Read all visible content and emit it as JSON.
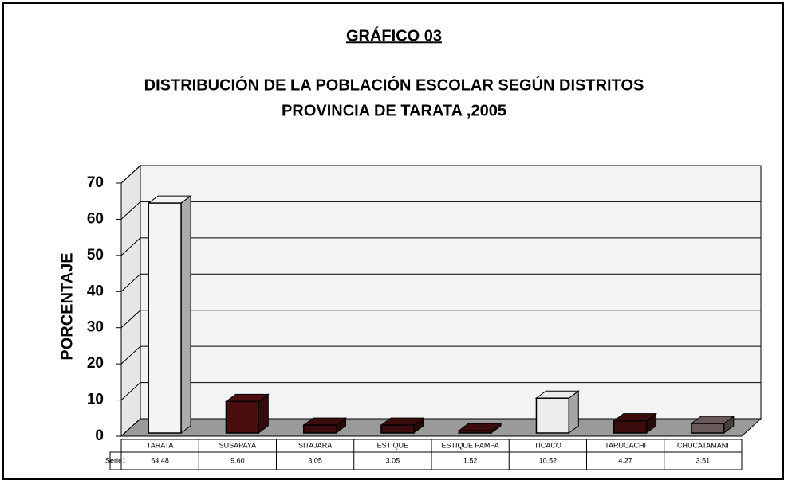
{
  "chart_data": {
    "type": "bar3d",
    "title": "GRÁFICO 03",
    "subtitle": [
      "DISTRIBUCIÓN DE LA POBLACIÓN ESCOLAR SEGÚN DISTRITOS",
      "PROVINCIA DE TARATA ,2005"
    ],
    "ylabel": "PORCENTAJE",
    "categories": [
      "TARATA",
      "SUSAPAYA",
      "SITAJARA",
      "ESTIQUE",
      "ESTIQUE PAMPA",
      "TICACO",
      "TARUCACHI",
      "CHUCATAMANI"
    ],
    "series": [
      {
        "name": "Serie1",
        "colors": [
          "#f4f4f4",
          "#4a0e0e",
          "#3a0c0c",
          "#3a0c0c",
          "#3a0c0c",
          "#ececec",
          "#3a0c0c",
          "#6a5a5a"
        ],
        "values": [
          64.48,
          9.6,
          3.05,
          3.05,
          1.52,
          10.52,
          4.27,
          3.51
        ],
        "value_labels": [
          "64.48",
          "9.60",
          "3.05",
          "3.05",
          "1.52",
          "10.52",
          "4.27",
          "3.51"
        ]
      }
    ],
    "ylim": [
      0,
      70
    ],
    "yticks": [
      0,
      10,
      20,
      30,
      40,
      50,
      60,
      70
    ],
    "grid": true
  }
}
